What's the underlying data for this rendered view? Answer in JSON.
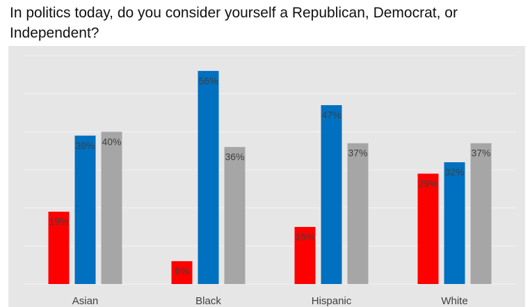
{
  "page": {
    "title": "In politics today, do you consider yourself a Republican, Democrat, or Independent?"
  },
  "chart_data": {
    "type": "bar",
    "title": "In politics today, do you consider yourself a Republican, Democrat, or Independent?",
    "xlabel": "",
    "ylabel": "",
    "categories": [
      "Asian",
      "Black",
      "Hispanic",
      "White"
    ],
    "series": [
      {
        "color": "#ff0000",
        "values": [
          19,
          6,
          15,
          29
        ],
        "labels": [
          "19%",
          "6%",
          "15%",
          "29%"
        ]
      },
      {
        "color": "#0070c0",
        "values": [
          39,
          56,
          47,
          32
        ],
        "labels": [
          "39%",
          "56%",
          "47%",
          "32%"
        ]
      },
      {
        "color": "#a6a6a6",
        "values": [
          40,
          36,
          37,
          37
        ],
        "labels": [
          "40%",
          "36%",
          "37%",
          "37%"
        ]
      }
    ],
    "ylim": [
      0,
      60
    ],
    "grid": true,
    "legend": "none",
    "background": "#e7e6e6",
    "gridline_color": "#f3f3f3"
  }
}
